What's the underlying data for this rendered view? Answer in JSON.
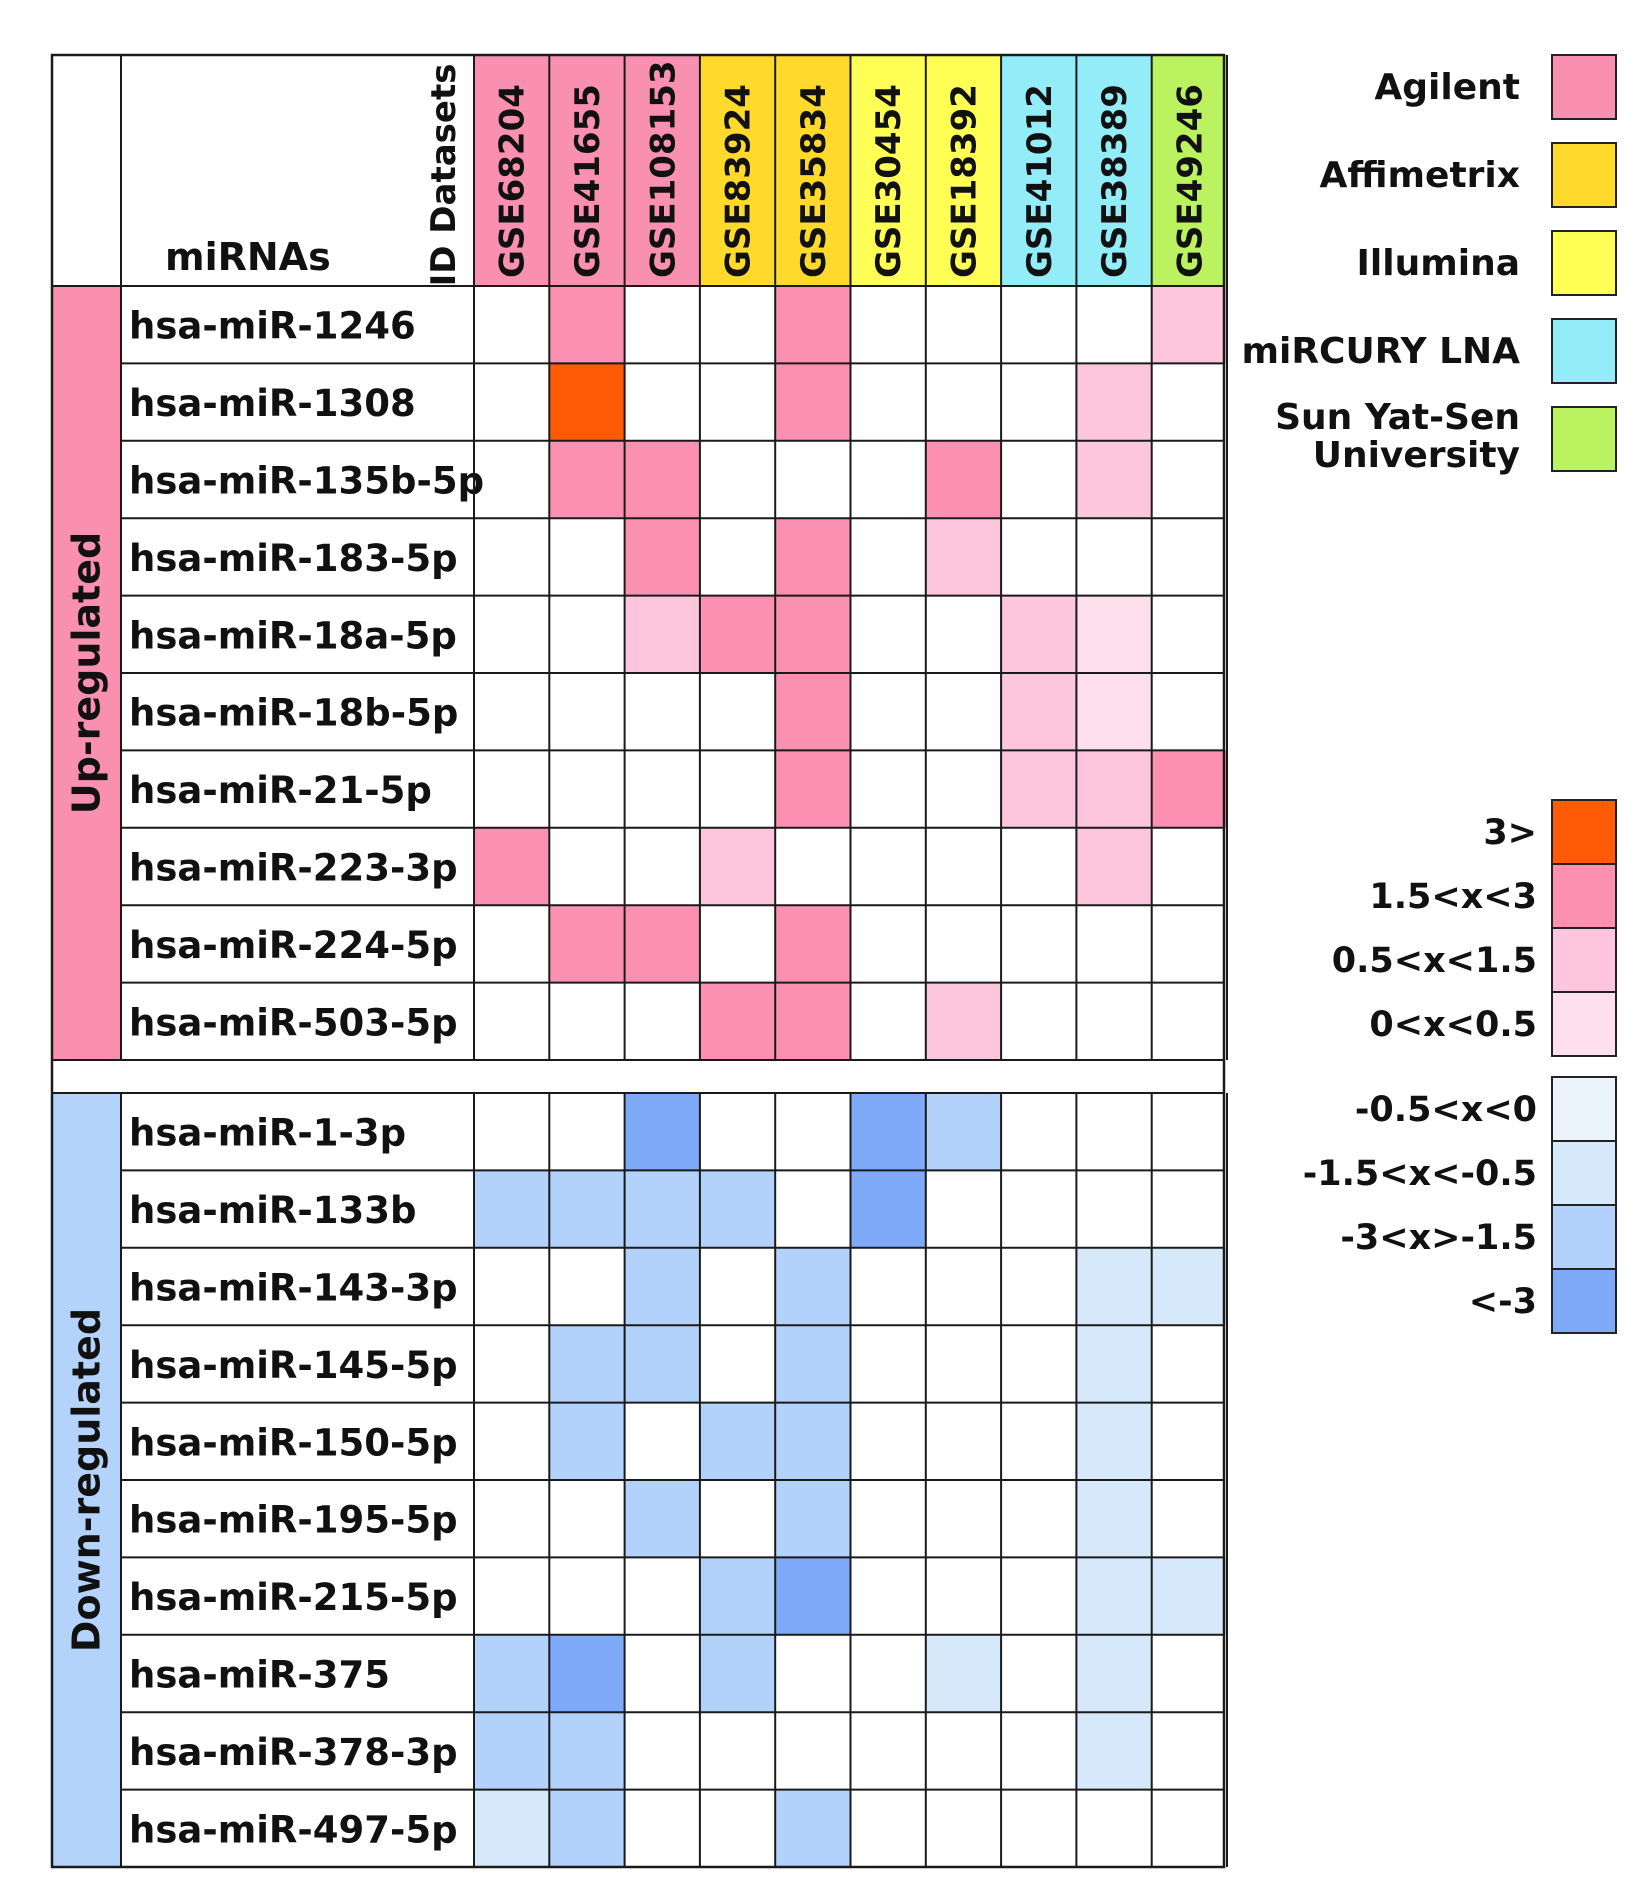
{
  "chart_data": {
    "type": "heatmap",
    "corner_label": "ID Datasets",
    "row_header_label": "miRNAs",
    "datasets": [
      {
        "id": "GSE68204",
        "platform": "Agilent"
      },
      {
        "id": "GSE41655",
        "platform": "Agilent"
      },
      {
        "id": "GSE108153",
        "platform": "Agilent"
      },
      {
        "id": "GSE83924",
        "platform": "Affimetrix"
      },
      {
        "id": "GSE35834",
        "platform": "Affimetrix"
      },
      {
        "id": "GSE30454",
        "platform": "Illumina"
      },
      {
        "id": "GSE18392",
        "platform": "Illumina"
      },
      {
        "id": "GSE41012",
        "platform": "miRCURY LNA"
      },
      {
        "id": "GSE38389",
        "platform": "miRCURY LNA"
      },
      {
        "id": "GSE49246",
        "platform": "Sun Yat-Sen University"
      }
    ],
    "platform_legend": [
      {
        "name": "Agilent",
        "color": "#F990B2"
      },
      {
        "name": "Affimetrix",
        "color": "#FFD92B"
      },
      {
        "name": "Illumina",
        "color": "#FFFF55"
      },
      {
        "name": "miRCURY LNA",
        "color": "#93EDF9"
      },
      {
        "name": "Sun Yat-Sen University",
        "color": "#BBF360"
      }
    ],
    "value_legend": {
      "up": [
        {
          "label": "3>",
          "level": 4,
          "color": "#FF5A06"
        },
        {
          "label": "1.5<x<3",
          "level": 3,
          "color": "#FC90B3"
        },
        {
          "label": "0.5<x<1.5",
          "level": 2,
          "color": "#FDC6DC"
        },
        {
          "label": "0<x<0.5",
          "level": 1,
          "color": "#FDE0EC"
        }
      ],
      "down": [
        {
          "label": "-0.5<x<0",
          "level": -1,
          "color": "#EBF4FC"
        },
        {
          "label": "-1.5<x<-0.5",
          "level": -2,
          "color": "#D6E9FA"
        },
        {
          "label": "-3<x>-1.5",
          "level": -3,
          "color": "#B2D2FB"
        },
        {
          "label": "<-3",
          "level": -4,
          "color": "#7EAAF9"
        }
      ]
    },
    "groups": [
      {
        "name": "Up-regulated",
        "color": "#F990B2",
        "rows": [
          {
            "mirna": "hsa-miR-1246",
            "values": [
              0,
              3,
              0,
              0,
              3,
              0,
              0,
              0,
              0,
              2
            ]
          },
          {
            "mirna": "hsa-miR-1308",
            "values": [
              0,
              4,
              0,
              0,
              3,
              0,
              0,
              0,
              2,
              0
            ]
          },
          {
            "mirna": "hsa-miR-135b-5p",
            "values": [
              0,
              3,
              3,
              0,
              0,
              0,
              3,
              0,
              2,
              0
            ]
          },
          {
            "mirna": "hsa-miR-183-5p",
            "values": [
              0,
              0,
              3,
              0,
              3,
              0,
              2,
              0,
              0,
              0
            ]
          },
          {
            "mirna": "hsa-miR-18a-5p",
            "values": [
              0,
              0,
              2,
              3,
              3,
              0,
              0,
              2,
              1,
              0
            ]
          },
          {
            "mirna": "hsa-miR-18b-5p",
            "values": [
              0,
              0,
              0,
              0,
              3,
              0,
              0,
              2,
              1,
              0
            ]
          },
          {
            "mirna": "hsa-miR-21-5p",
            "values": [
              0,
              0,
              0,
              0,
              3,
              0,
              0,
              2,
              2,
              3
            ]
          },
          {
            "mirna": "hsa-miR-223-3p",
            "values": [
              3,
              0,
              0,
              2,
              0,
              0,
              0,
              0,
              2,
              0
            ]
          },
          {
            "mirna": "hsa-miR-224-5p",
            "values": [
              0,
              3,
              3,
              0,
              3,
              0,
              0,
              0,
              0,
              0
            ]
          },
          {
            "mirna": "hsa-miR-503-5p",
            "values": [
              0,
              0,
              0,
              3,
              3,
              0,
              2,
              0,
              0,
              0
            ]
          }
        ]
      },
      {
        "name": "Down-regulated",
        "color": "#B3D3FB",
        "rows": [
          {
            "mirna": "hsa-miR-1-3p",
            "values": [
              0,
              0,
              -4,
              0,
              0,
              -4,
              -3,
              0,
              0,
              0
            ]
          },
          {
            "mirna": "hsa-miR-133b",
            "values": [
              -3,
              -3,
              -3,
              -3,
              0,
              -4,
              0,
              0,
              0,
              0
            ]
          },
          {
            "mirna": "hsa-miR-143-3p",
            "values": [
              0,
              0,
              -3,
              0,
              -3,
              0,
              0,
              0,
              -2,
              -2
            ]
          },
          {
            "mirna": "hsa-miR-145-5p",
            "values": [
              0,
              -3,
              -3,
              0,
              -3,
              0,
              0,
              0,
              -2,
              0
            ]
          },
          {
            "mirna": "hsa-miR-150-5p",
            "values": [
              0,
              -3,
              0,
              -3,
              -3,
              0,
              0,
              0,
              -2,
              0
            ]
          },
          {
            "mirna": "hsa-miR-195-5p",
            "values": [
              0,
              0,
              -3,
              0,
              -3,
              0,
              0,
              0,
              -2,
              0
            ]
          },
          {
            "mirna": "hsa-miR-215-5p",
            "values": [
              0,
              0,
              0,
              -3,
              -4,
              0,
              0,
              0,
              -2,
              -2
            ]
          },
          {
            "mirna": "hsa-miR-375",
            "values": [
              -3,
              -4,
              0,
              -3,
              0,
              0,
              -2,
              0,
              -2,
              0
            ]
          },
          {
            "mirna": "hsa-miR-378-3p",
            "values": [
              -3,
              -3,
              0,
              0,
              0,
              0,
              0,
              0,
              -2,
              0
            ]
          },
          {
            "mirna": "hsa-miR-497-5p",
            "values": [
              -2,
              -3,
              0,
              0,
              -3,
              0,
              0,
              0,
              0,
              0
            ]
          }
        ]
      }
    ]
  }
}
